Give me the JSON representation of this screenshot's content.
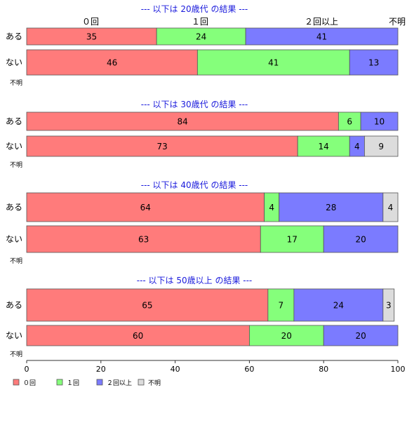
{
  "colors": {
    "zero": "#ff7b7b",
    "one": "#85ff7b",
    "two_plus": "#7b7bff",
    "unknown": "#dcdcdc",
    "title": "#1a1adc",
    "border": "#555555"
  },
  "header_labels": [
    "０回",
    "１回",
    "２回以上",
    "不明"
  ],
  "chart_data": {
    "type": "bar",
    "orientation": "horizontal",
    "stacked": true,
    "xlim": [
      0,
      100
    ],
    "xticks": [
      "0",
      "20",
      "40",
      "60",
      "80",
      "100"
    ],
    "series_names": [
      "０回",
      "１回",
      "２回以上",
      "不明"
    ],
    "groups": [
      {
        "title": "--- 以下は 20歳代 の結果 ---",
        "rows": [
          {
            "label": "ある",
            "values": [
              35,
              24,
              41,
              0
            ]
          },
          {
            "label": "ない",
            "values": [
              46,
              41,
              13,
              0
            ]
          }
        ],
        "footnote": "不明"
      },
      {
        "title": "--- 以下は 30歳代 の結果 ---",
        "rows": [
          {
            "label": "ある",
            "values": [
              84,
              6,
              10,
              0
            ]
          },
          {
            "label": "ない",
            "values": [
              73,
              14,
              4,
              9
            ]
          }
        ],
        "footnote": "不明"
      },
      {
        "title": "--- 以下は 40歳代 の結果 ---",
        "rows": [
          {
            "label": "ある",
            "values": [
              64,
              4,
              28,
              4
            ]
          },
          {
            "label": "ない",
            "values": [
              63,
              17,
              20,
              0
            ]
          }
        ],
        "footnote": "不明"
      },
      {
        "title": "--- 以下は 50歳以上 の結果 ---",
        "rows": [
          {
            "label": "ある",
            "values": [
              65,
              7,
              24,
              3
            ]
          },
          {
            "label": "ない",
            "values": [
              60,
              20,
              20,
              0
            ]
          }
        ],
        "footnote": "不明"
      }
    ],
    "legend": {
      "placement": "bottom-left",
      "entries": [
        "０回",
        "１回",
        "２回以上",
        "不明"
      ]
    }
  }
}
